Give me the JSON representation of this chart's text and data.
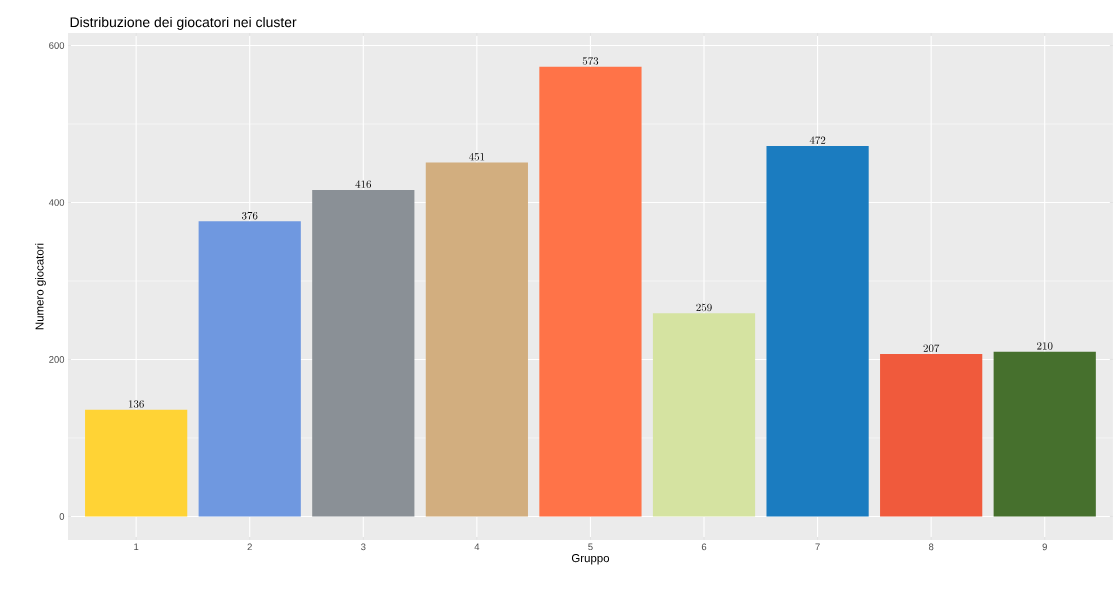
{
  "chart_data": {
    "type": "bar",
    "title": "Distribuzione dei giocatori nei cluster",
    "xlabel": "Gruppo",
    "ylabel": "Numero giocatori",
    "categories": [
      "1",
      "2",
      "3",
      "4",
      "5",
      "6",
      "7",
      "8",
      "9"
    ],
    "values": [
      136,
      376,
      416,
      451,
      573,
      259,
      472,
      207,
      210
    ],
    "colors": [
      "#ffd335",
      "#6f98e0",
      "#8a9096",
      "#d2ae7f",
      "#ff7348",
      "#d5e3a1",
      "#1b7cc0",
      "#f05a3c",
      "#46702d"
    ],
    "ylim": [
      -30,
      616
    ],
    "yticks": [
      0,
      200,
      400,
      600
    ],
    "grid": true,
    "data_labels": true
  }
}
